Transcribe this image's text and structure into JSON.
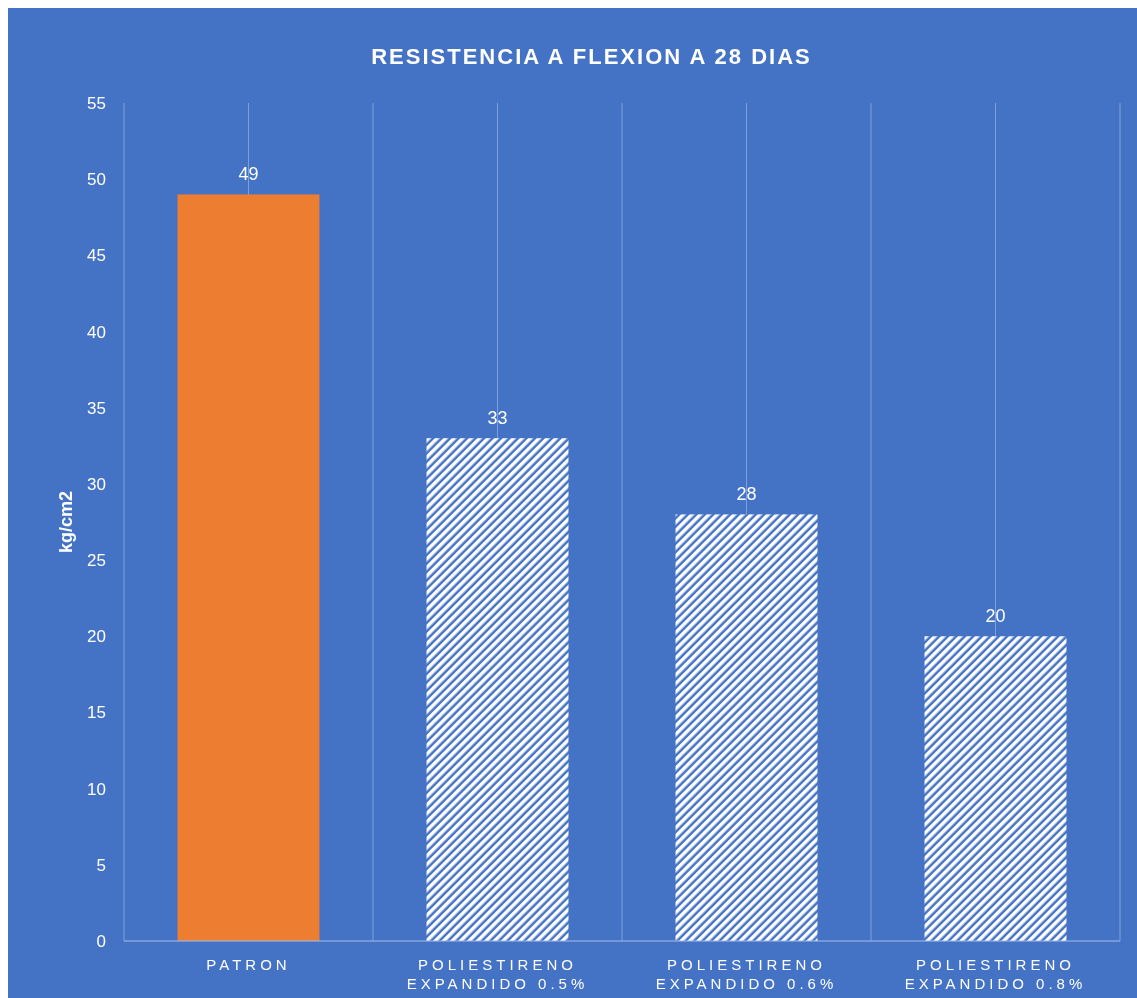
{
  "chart_data": {
    "type": "bar",
    "title": "RESISTENCIA A FLEXION A 28 DIAS",
    "ylabel": "kg/cm2",
    "categories": [
      "PATRON",
      "POLIESTIRENO EXPANDIDO 0.5%",
      "POLIESTIRENO EXPANDIDO 0.6%",
      "POLIESTIRENO EXPANDIDO 0.8%"
    ],
    "values": [
      49,
      33,
      28,
      20
    ],
    "colors": [
      "#ed7d31",
      "#ffffff",
      "#ffffff",
      "#ffffff"
    ],
    "ylim": [
      0,
      55
    ],
    "yticks": [
      0,
      5,
      10,
      15,
      20,
      25,
      30,
      35,
      40,
      45,
      50,
      55
    ],
    "grid": "x",
    "data_labels": true
  }
}
